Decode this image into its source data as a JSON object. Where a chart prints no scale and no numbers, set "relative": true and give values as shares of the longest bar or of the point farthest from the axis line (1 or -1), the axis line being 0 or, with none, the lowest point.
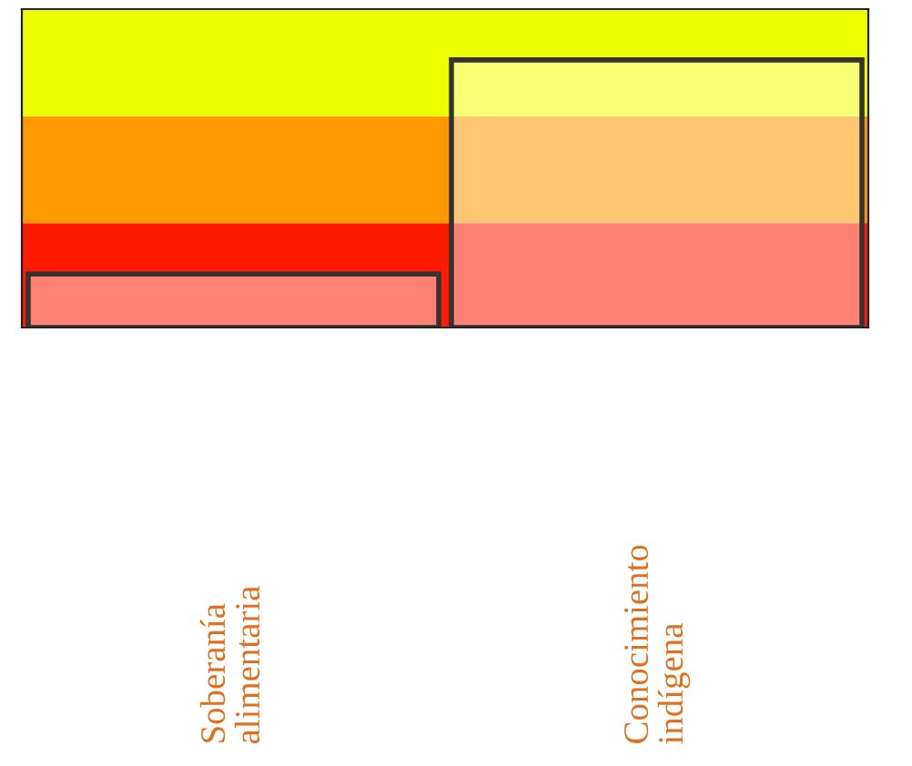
{
  "chart_data": {
    "type": "bar",
    "relative": true,
    "categories": [
      "Soberanía alimentaria",
      "Conocimiento indígena"
    ],
    "values": [
      0.2,
      1
    ],
    "bands": [
      {
        "axis": "y",
        "from": 0,
        "to": 0.39,
        "color": "#ff1a00"
      },
      {
        "axis": "y",
        "from": 0.39,
        "to": 0.79,
        "color": "#ff9900"
      },
      {
        "axis": "y",
        "from": 0.79,
        "to": 1.19,
        "color": "#eeff00"
      }
    ]
  }
}
